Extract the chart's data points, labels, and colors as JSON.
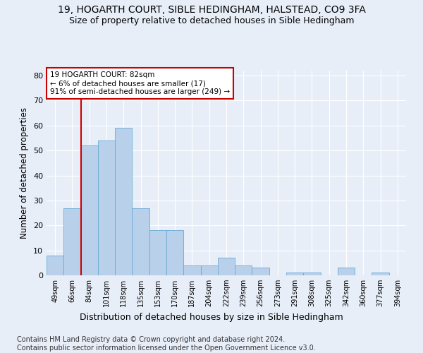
{
  "title1": "19, HOGARTH COURT, SIBLE HEDINGHAM, HALSTEAD, CO9 3FA",
  "title2": "Size of property relative to detached houses in Sible Hedingham",
  "xlabel": "Distribution of detached houses by size in Sible Hedingham",
  "ylabel": "Number of detached properties",
  "footnote": "Contains HM Land Registry data © Crown copyright and database right 2024.\nContains public sector information licensed under the Open Government Licence v3.0.",
  "bin_labels": [
    "49sqm",
    "66sqm",
    "84sqm",
    "101sqm",
    "118sqm",
    "135sqm",
    "153sqm",
    "170sqm",
    "187sqm",
    "204sqm",
    "222sqm",
    "239sqm",
    "256sqm",
    "273sqm",
    "291sqm",
    "308sqm",
    "325sqm",
    "342sqm",
    "360sqm",
    "377sqm",
    "394sqm"
  ],
  "bar_values": [
    8,
    27,
    52,
    54,
    59,
    27,
    18,
    18,
    4,
    4,
    7,
    4,
    3,
    0,
    1,
    1,
    0,
    3,
    0,
    1,
    0
  ],
  "bar_color": "#b8d0ea",
  "bar_edge_color": "#6aaad4",
  "annotation_text_line1": "19 HOGARTH COURT: 82sqm",
  "annotation_text_line2": "← 6% of detached houses are smaller (17)",
  "annotation_text_line3": "91% of semi-detached houses are larger (249) →",
  "annotation_box_color": "white",
  "annotation_box_edge_color": "#cc0000",
  "vline_color": "#cc0000",
  "ylim": [
    0,
    82
  ],
  "yticks": [
    0,
    10,
    20,
    30,
    40,
    50,
    60,
    70,
    80
  ],
  "background_color": "#e8eef8",
  "grid_color": "#ffffff",
  "title1_fontsize": 10,
  "title2_fontsize": 9,
  "xlabel_fontsize": 9,
  "ylabel_fontsize": 8.5,
  "footnote_fontsize": 7
}
